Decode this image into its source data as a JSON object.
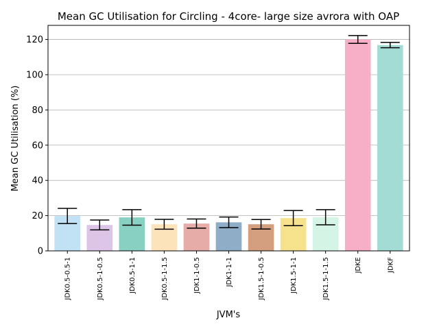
{
  "chart_data": {
    "type": "bar",
    "title": "Mean GC Utilisation for Circling - 4core- large size avrora with OAP",
    "xlabel": "JVM's",
    "ylabel": "Mean GC Utilisation (%)",
    "ylim": [
      0,
      128
    ],
    "yticks": [
      0,
      20,
      40,
      60,
      80,
      100,
      120
    ],
    "grid": "horizontal",
    "categories": [
      "JDK0.5-0.5-1",
      "JDK0.5-1-0.5",
      "JDK0.5-1-1",
      "JDK0.5-1-1.5",
      "JDK1-1-0.5",
      "JDK1-1-1",
      "JDK1.5-1-0.5",
      "JDK1.5-1-1",
      "JDK1.5-1-1.5",
      "JDKE",
      "JDKF"
    ],
    "values": [
      19.8,
      14.7,
      19.0,
      15.1,
      15.5,
      16.2,
      15.1,
      18.6,
      19.1,
      120.0,
      116.8
    ],
    "error": [
      4.3,
      2.8,
      4.4,
      2.8,
      2.6,
      3.0,
      2.7,
      4.3,
      4.3,
      2.2,
      1.5
    ],
    "colors": [
      "#c1e1f5",
      "#dcc5e6",
      "#88d1c2",
      "#fde3b9",
      "#e6aca7",
      "#8fadc6",
      "#d39f7f",
      "#f6e18c",
      "#d4f5e5",
      "#f7afc8",
      "#a3dcd5"
    ]
  }
}
